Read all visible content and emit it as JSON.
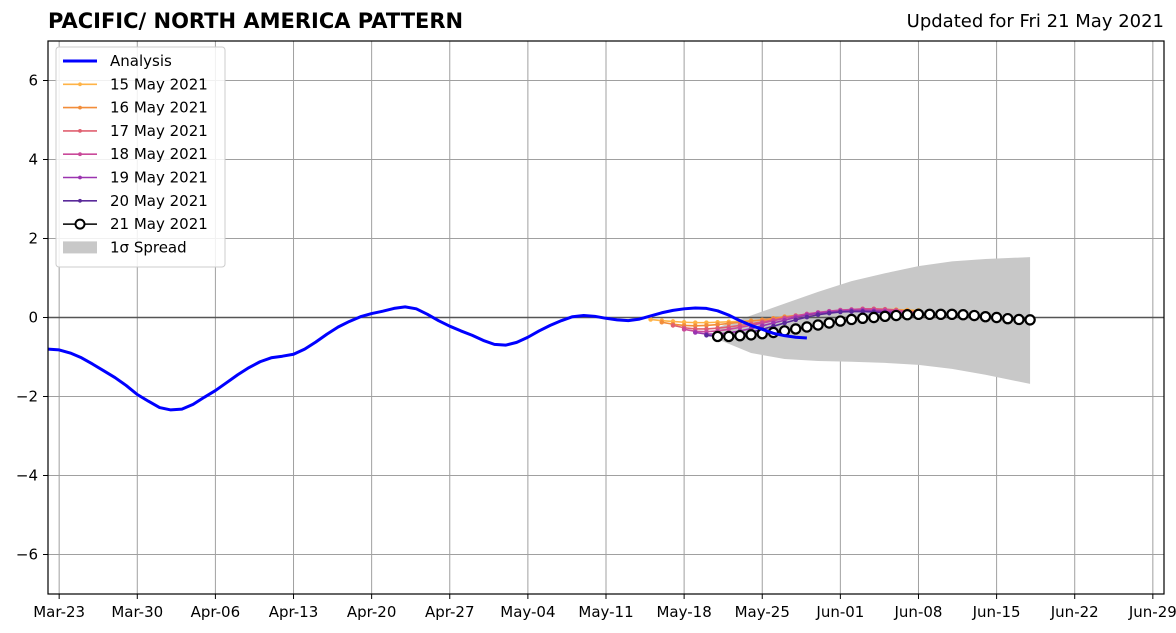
{
  "header": {
    "title": "PACIFIC/ NORTH AMERICA PATTERN",
    "updated": "Updated for Fri 21 May 2021"
  },
  "colors": {
    "analysis": "#0000ff",
    "spread": "#c8c8c8",
    "grid": "#a0a0a0",
    "zero_line": "#555555"
  },
  "chart_data": {
    "type": "line",
    "title": "PACIFIC/ NORTH AMERICA PATTERN",
    "subtitle": "Updated for Fri 21 May 2021",
    "xlabel": "",
    "ylabel": "",
    "xlim": [
      "2021-03-22",
      "2021-06-30"
    ],
    "ylim": [
      -7,
      7
    ],
    "grid": true,
    "legend_position": "top-left",
    "x_ticks": [
      "Mar-23",
      "Mar-30",
      "Apr-06",
      "Apr-13",
      "Apr-20",
      "Apr-27",
      "May-04",
      "May-11",
      "May-18",
      "May-25",
      "Jun-01",
      "Jun-08",
      "Jun-15",
      "Jun-22",
      "Jun-29"
    ],
    "x_tick_dates": [
      "2021-03-23",
      "2021-03-30",
      "2021-04-06",
      "2021-04-13",
      "2021-04-20",
      "2021-04-27",
      "2021-05-04",
      "2021-05-11",
      "2021-05-18",
      "2021-05-25",
      "2021-06-01",
      "2021-06-08",
      "2021-06-15",
      "2021-06-22",
      "2021-06-29"
    ],
    "y_ticks": [
      6,
      4,
      2,
      0,
      -2,
      -4,
      -6
    ],
    "y_tick_labels": [
      "6",
      "4",
      "2",
      "0",
      "−2",
      "−4",
      "−6"
    ],
    "analysis": {
      "name": "Analysis",
      "color": "#0000ff",
      "start_date": "2021-03-22",
      "values": [
        -0.8,
        -0.82,
        -0.9,
        -1.02,
        -1.18,
        -1.35,
        -1.52,
        -1.72,
        -1.95,
        -2.12,
        -2.28,
        -2.34,
        -2.32,
        -2.2,
        -2.02,
        -1.85,
        -1.65,
        -1.45,
        -1.27,
        -1.12,
        -1.02,
        -0.98,
        -0.93,
        -0.8,
        -0.62,
        -0.42,
        -0.24,
        -0.1,
        0.02,
        0.1,
        0.16,
        0.23,
        0.27,
        0.22,
        0.08,
        -0.08,
        -0.22,
        -0.34,
        -0.45,
        -0.58,
        -0.68,
        -0.7,
        -0.63,
        -0.5,
        -0.34,
        -0.2,
        -0.08,
        0.02,
        0.05,
        0.03,
        -0.02,
        -0.06,
        -0.08,
        -0.04,
        0.04,
        0.12,
        0.18,
        0.22,
        0.24,
        0.23,
        0.17,
        0.06,
        -0.08,
        -0.2,
        -0.3,
        -0.4,
        -0.46,
        -0.5,
        -0.52
      ]
    },
    "forecasts": [
      {
        "name": "15 May 2021",
        "color": "#ffb347",
        "start_date": "2021-05-15",
        "values": [
          -0.05,
          -0.08,
          -0.1,
          -0.12,
          -0.13,
          -0.13,
          -0.12,
          -0.11,
          -0.1,
          -0.08,
          -0.06,
          -0.03,
          0.0,
          0.03,
          0.06,
          0.09,
          0.12,
          0.15,
          0.17,
          0.19,
          0.2,
          0.2,
          0.2,
          0.19,
          0.18
        ]
      },
      {
        "name": "16 May 2021",
        "color": "#f28d3a",
        "start_date": "2021-05-16",
        "values": [
          -0.12,
          -0.17,
          -0.2,
          -0.21,
          -0.2,
          -0.18,
          -0.15,
          -0.12,
          -0.09,
          -0.06,
          -0.02,
          0.02,
          0.05,
          0.08,
          0.11,
          0.14,
          0.16,
          0.18,
          0.19,
          0.19,
          0.19,
          0.18,
          0.17,
          0.15
        ]
      },
      {
        "name": "17 May 2021",
        "color": "#e06070",
        "start_date": "2021-05-17",
        "values": [
          -0.2,
          -0.26,
          -0.29,
          -0.29,
          -0.27,
          -0.24,
          -0.2,
          -0.16,
          -0.11,
          -0.06,
          -0.01,
          0.04,
          0.08,
          0.12,
          0.15,
          0.18,
          0.2,
          0.22,
          0.22,
          0.21,
          0.19,
          0.16,
          0.12
        ]
      },
      {
        "name": "18 May 2021",
        "color": "#c94a9a",
        "start_date": "2021-05-18",
        "values": [
          -0.3,
          -0.35,
          -0.36,
          -0.34,
          -0.3,
          -0.25,
          -0.2,
          -0.14,
          -0.08,
          -0.02,
          0.04,
          0.09,
          0.13,
          0.16,
          0.19,
          0.2,
          0.21,
          0.2,
          0.19,
          0.17,
          0.14,
          0.11
        ]
      },
      {
        "name": "19 May 2021",
        "color": "#9b34b0",
        "start_date": "2021-05-19",
        "values": [
          -0.38,
          -0.42,
          -0.42,
          -0.39,
          -0.34,
          -0.28,
          -0.21,
          -0.14,
          -0.07,
          0.0,
          0.06,
          0.11,
          0.14,
          0.16,
          0.18,
          0.18,
          0.17,
          0.15,
          0.13,
          0.1,
          0.07
        ]
      },
      {
        "name": "20 May 2021",
        "color": "#5a2a9a",
        "start_date": "2021-05-20",
        "values": [
          -0.45,
          -0.48,
          -0.47,
          -0.43,
          -0.37,
          -0.3,
          -0.22,
          -0.14,
          -0.06,
          0.01,
          0.07,
          0.11,
          0.14,
          0.15,
          0.15,
          0.14,
          0.12,
          0.09,
          0.06,
          0.03
        ]
      },
      {
        "name": "21 May 2021",
        "color": "#000000",
        "start_date": "2021-05-21",
        "values": [
          -0.48,
          -0.48,
          -0.46,
          -0.44,
          -0.41,
          -0.38,
          -0.34,
          -0.29,
          -0.24,
          -0.19,
          -0.14,
          -0.09,
          -0.05,
          -0.02,
          0.0,
          0.03,
          0.05,
          0.07,
          0.08,
          0.08,
          0.08,
          0.08,
          0.07,
          0.05,
          0.02,
          0.0,
          -0.03,
          -0.05,
          -0.06
        ]
      }
    ],
    "spread": {
      "name": "1σ Spread",
      "color": "#c8c8c8",
      "dates": [
        "2021-05-21",
        "2021-05-24",
        "2021-05-27",
        "2021-05-30",
        "2021-06-02",
        "2021-06-05",
        "2021-06-08",
        "2021-06-11",
        "2021-06-14",
        "2021-06-18"
      ],
      "upper": [
        -0.25,
        0.05,
        0.35,
        0.65,
        0.92,
        1.12,
        1.3,
        1.42,
        1.48,
        1.53
      ],
      "lower": [
        -0.55,
        -0.9,
        -1.05,
        -1.1,
        -1.12,
        -1.15,
        -1.2,
        -1.3,
        -1.45,
        -1.68
      ]
    },
    "legend": [
      "Analysis",
      "15 May 2021",
      "16 May 2021",
      "17 May 2021",
      "18 May 2021",
      "19 May 2021",
      "20 May 2021",
      "21 May 2021",
      "1σ Spread"
    ]
  }
}
